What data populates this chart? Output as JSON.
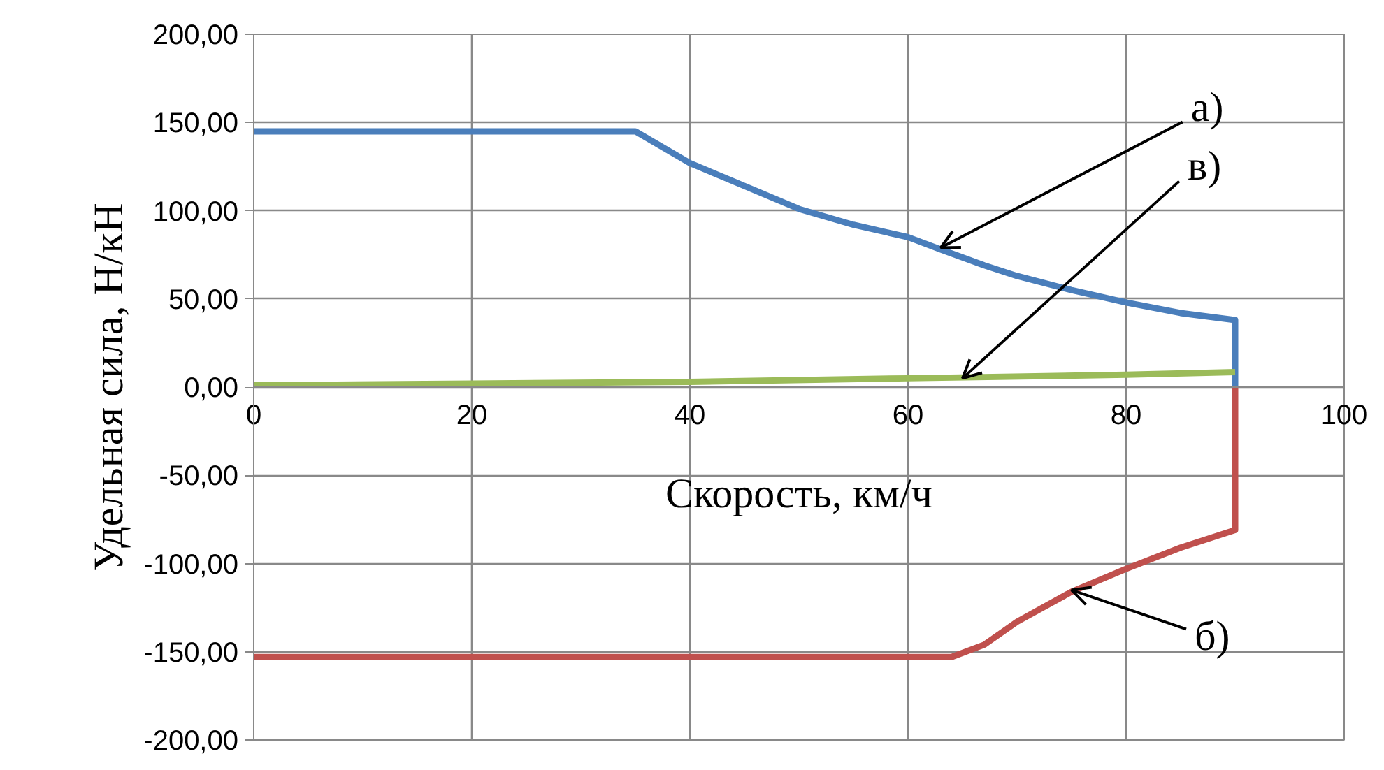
{
  "chart_data": {
    "type": "line",
    "xlabel": "Скорость, км/ч",
    "ylabel": "Удельная сила, Н/кН",
    "xlim": [
      0,
      100
    ],
    "ylim": [
      -200,
      200
    ],
    "xticks": [
      0,
      20,
      40,
      60,
      80,
      100
    ],
    "yticks": [
      {
        "value": 200,
        "label": "200,00"
      },
      {
        "value": 150,
        "label": "150,00"
      },
      {
        "value": 100,
        "label": "100,00"
      },
      {
        "value": 50,
        "label": "50,00"
      },
      {
        "value": 0,
        "label": "0,00"
      },
      {
        "value": -50,
        "label": "-50,00"
      },
      {
        "value": -100,
        "label": "-100,00"
      },
      {
        "value": -150,
        "label": "-150,00"
      },
      {
        "value": -200,
        "label": "-200,00"
      }
    ],
    "grid": true,
    "marker": "none",
    "line_style": "solid",
    "series": [
      {
        "color": "#4a7ebb",
        "x": [
          0,
          35,
          40,
          45,
          50,
          55,
          60,
          63,
          67,
          70,
          75,
          80,
          85,
          90,
          90
        ],
        "values": [
          145,
          145,
          127,
          114,
          101,
          92,
          85,
          78,
          69,
          63,
          55,
          48,
          42,
          38,
          0
        ]
      },
      {
        "color": "#9bbb59",
        "x": [
          0,
          20,
          40,
          60,
          80,
          90
        ],
        "values": [
          1,
          2,
          3,
          5,
          7,
          8.5
        ]
      },
      {
        "color": "#c0504d",
        "x": [
          0,
          64,
          67,
          70,
          75,
          80,
          85,
          90,
          90
        ],
        "values": [
          -153,
          -153,
          -146,
          -133,
          -116,
          -103,
          -91,
          -81,
          0
        ]
      }
    ],
    "annotations": [
      {
        "text": "а)",
        "x": 63,
        "y": 79
      },
      {
        "text": "в)",
        "x": 65,
        "y": 5
      },
      {
        "text": "б)",
        "x": 75,
        "y": -115
      }
    ]
  }
}
